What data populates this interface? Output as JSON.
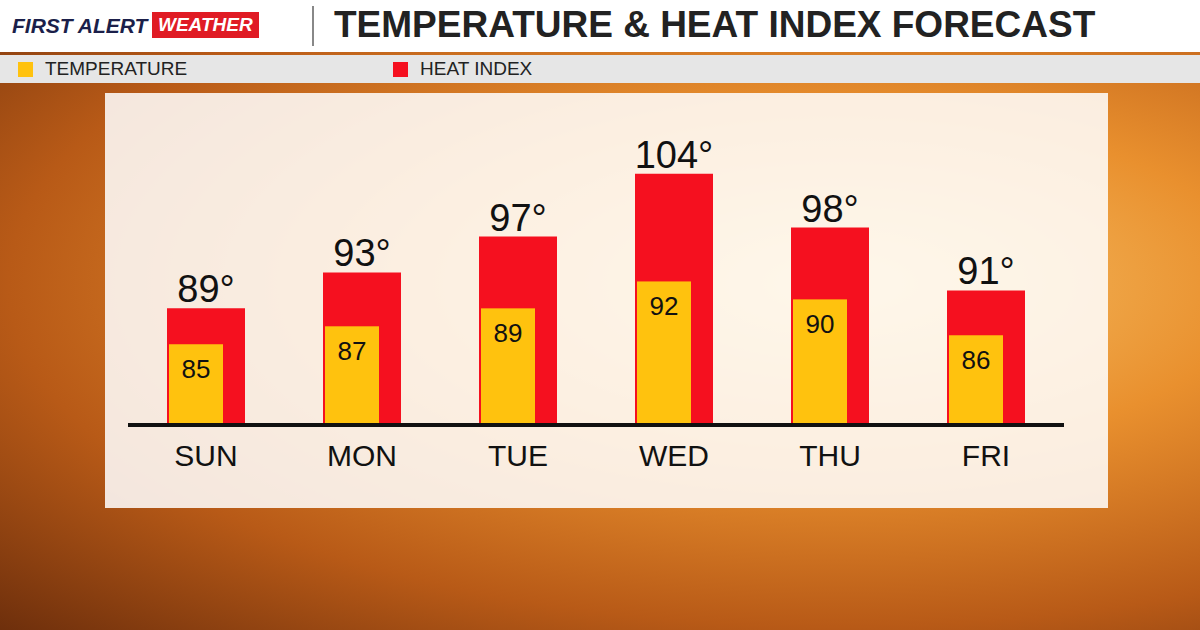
{
  "chart_data": {
    "type": "bar",
    "title": "TEMPERATURE & HEAT INDEX FORECAST",
    "categories": [
      "SUN",
      "MON",
      "TUE",
      "WED",
      "THU",
      "FRI"
    ],
    "series": [
      {
        "name": "TEMPERATURE",
        "color": "#ffc20e",
        "values": [
          85,
          87,
          89,
          92,
          90,
          86
        ]
      },
      {
        "name": "HEAT INDEX",
        "color": "#f5101f",
        "values": [
          89,
          93,
          97,
          104,
          98,
          91
        ],
        "value_labels": [
          "89°",
          "93°",
          "97°",
          "104°",
          "98°",
          "91°"
        ]
      }
    ],
    "ylim": [
      76,
      113
    ],
    "data_labels": true,
    "tick_labels": "x",
    "grid": false,
    "legend": "top-left"
  },
  "header": {
    "logo": [
      "FIRST ALERT",
      "WEATHER"
    ]
  }
}
